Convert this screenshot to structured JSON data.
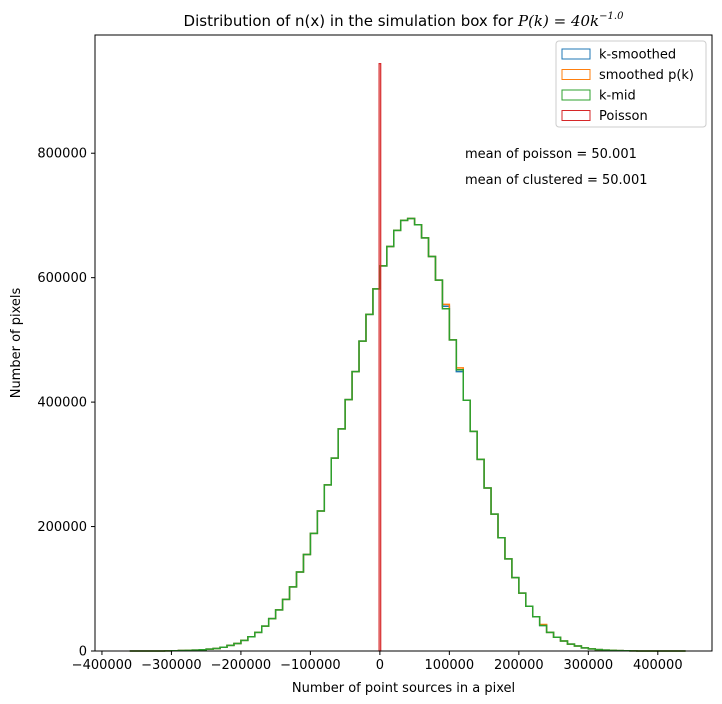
{
  "chart_data": {
    "type": "histogram",
    "title_prefix": "Distribution of n(x) in the simulation box for ",
    "title_math": "P(k) = 40k",
    "title_exponent": "−1.0",
    "xlabel": "Number of point sources in a pixel",
    "ylabel": "Number of pixels",
    "xlim": [
      -410000,
      478000
    ],
    "ylim": [
      0,
      990000
    ],
    "xticks": [
      -400000,
      -300000,
      -200000,
      -100000,
      0,
      100000,
      200000,
      300000,
      400000
    ],
    "xtick_labels": [
      "−400000",
      "−300000",
      "−200000",
      "−100000",
      "0",
      "100000",
      "200000",
      "300000",
      "400000"
    ],
    "yticks": [
      0,
      200000,
      400000,
      600000,
      800000
    ],
    "ytick_labels": [
      "0",
      "200000",
      "400000",
      "600000",
      "800000"
    ],
    "grid": false,
    "legend_position": "top-right",
    "annotations": [
      "mean of poisson = 50.001",
      "mean of clustered = 50.001"
    ],
    "histogram": {
      "bin_start": -360000,
      "bin_end": 435000,
      "bin_width": 10000,
      "counts": [
        0,
        0,
        0,
        0,
        0,
        200,
        400,
        700,
        1000,
        1500,
        2000,
        3000,
        4000,
        6000,
        9000,
        12000,
        17000,
        23000,
        30000,
        40000,
        52000,
        66000,
        83000,
        103000,
        127000,
        155000,
        189000,
        225000,
        267000,
        310000,
        357000,
        404000,
        449000,
        498000,
        541000,
        582000,
        619000,
        650000,
        676000,
        692000,
        695000,
        685000,
        664000,
        634000,
        596000,
        550000,
        500000,
        452000,
        403000,
        353000,
        308000,
        262000,
        220000,
        182000,
        148000,
        118000,
        93000,
        72000,
        55000,
        41000,
        30000,
        22000,
        16000,
        11000,
        8000,
        5000,
        3500,
        2300,
        1500,
        1000,
        600,
        400,
        200,
        100,
        0,
        0,
        0,
        0,
        0,
        0
      ]
    },
    "series": [
      {
        "name": "k-smoothed",
        "color": "#1f77b4",
        "offsets": {
          "45": 4000,
          "47": -3000
        }
      },
      {
        "name": "smoothed p(k)",
        "color": "#ff7f0e",
        "offsets": {
          "45": 7000,
          "47": 3000,
          "59": 1500
        }
      },
      {
        "name": "k-mid",
        "color": "#2ca02c",
        "offsets": {}
      },
      {
        "name": "Poisson",
        "color": "#d62728",
        "spike_x": 50,
        "spike_height": 944000
      }
    ]
  }
}
